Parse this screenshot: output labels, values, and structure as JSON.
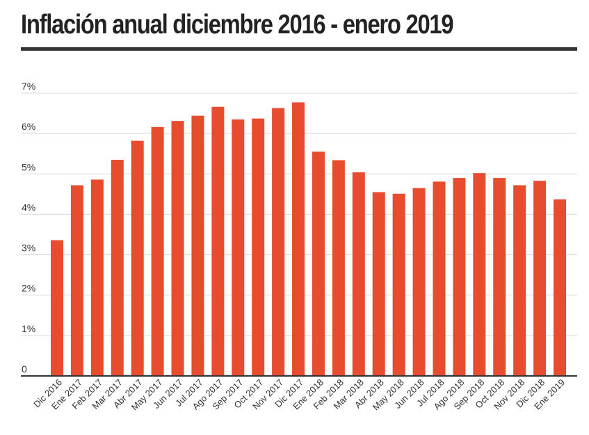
{
  "header": {
    "title": "Inflación anual diciembre 2016 - enero 2019"
  },
  "chart_data": {
    "type": "bar",
    "title": "Inflación anual diciembre 2016 - enero 2019",
    "xlabel": "",
    "ylabel": "",
    "ylim": [
      0,
      7
    ],
    "grid": true,
    "bar_color": "#e84c2e",
    "y_ticks": [
      {
        "value": 0,
        "label": "0"
      },
      {
        "value": 1,
        "label": "1%"
      },
      {
        "value": 2,
        "label": "2%"
      },
      {
        "value": 3,
        "label": "3%"
      },
      {
        "value": 4,
        "label": "4%"
      },
      {
        "value": 5,
        "label": "5%"
      },
      {
        "value": 6,
        "label": "6%"
      },
      {
        "value": 7,
        "label": "7%"
      }
    ],
    "categories": [
      "Dic 2016",
      "Ene 2017",
      "Feb 2017",
      "Mar 2017",
      "Abr 2017",
      "May 2017",
      "Jun 2017",
      "Jul 2017",
      "Ago 2017",
      "Sep 2017",
      "Oct 2017",
      "Nov 2017",
      "Dic 2017",
      "Ene 2018",
      "Feb 2018",
      "Mar 2018",
      "Abr 2018",
      "May 2018",
      "Jun 2018",
      "Jul 2018",
      "Ago 2018",
      "Sep 2018",
      "Oct 2018",
      "Nov 2018",
      "Dic 2018",
      "Ene 2019"
    ],
    "values": [
      3.36,
      4.72,
      4.86,
      5.35,
      5.82,
      6.16,
      6.31,
      6.44,
      6.66,
      6.35,
      6.37,
      6.63,
      6.77,
      5.55,
      5.34,
      5.04,
      4.55,
      4.51,
      4.65,
      4.81,
      4.9,
      5.02,
      4.9,
      4.72,
      4.83,
      4.37
    ]
  }
}
